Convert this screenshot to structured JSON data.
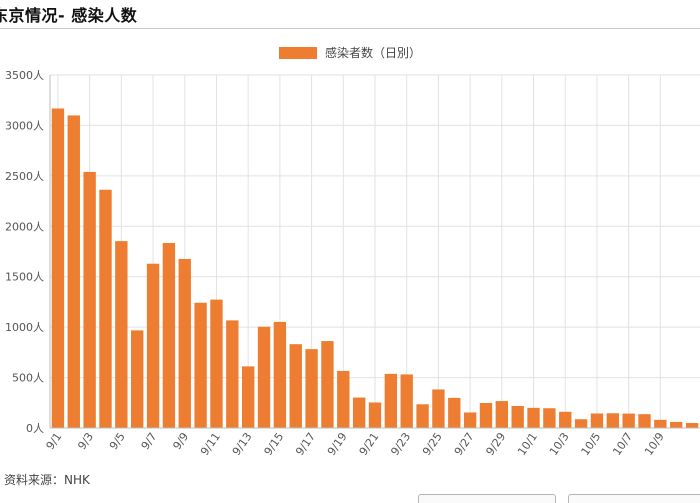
{
  "page": {
    "title": "东京情况- 感染人数"
  },
  "footer": {
    "source": "资料来源：NHK"
  },
  "chart_data": {
    "type": "bar",
    "legend": {
      "label": "感染者数（日別）",
      "position": "top"
    },
    "categories": [
      "9/1",
      "9/2",
      "9/3",
      "9/4",
      "9/5",
      "9/6",
      "9/7",
      "9/8",
      "9/9",
      "9/10",
      "9/11",
      "9/12",
      "9/13",
      "9/14",
      "9/15",
      "9/16",
      "9/17",
      "9/18",
      "9/19",
      "9/20",
      "9/21",
      "9/22",
      "9/23",
      "9/24",
      "9/25",
      "9/26",
      "9/27",
      "9/28",
      "9/29",
      "9/30",
      "10/1",
      "10/2",
      "10/3",
      "10/4",
      "10/5",
      "10/6",
      "10/7",
      "10/8",
      "10/9",
      "10/10",
      "10/11"
    ],
    "tick_labels": [
      "9/1",
      "9/3",
      "9/5",
      "9/7",
      "9/9",
      "9/11",
      "9/13",
      "9/15",
      "9/17",
      "9/19",
      "9/21",
      "9/23",
      "9/25",
      "9/27",
      "9/29",
      "10/1",
      "10/3",
      "10/5",
      "10/7",
      "10/9"
    ],
    "values": [
      3168,
      3099,
      2539,
      2362,
      1853,
      968,
      1629,
      1834,
      1676,
      1242,
      1273,
      1067,
      611,
      1004,
      1052,
      831,
      782,
      862,
      566,
      302,
      253,
      537,
      531,
      235,
      382,
      299,
      154,
      248,
      267,
      218,
      200,
      196,
      161,
      87,
      144,
      146,
      143,
      137,
      81,
      60,
      49
    ],
    "y_ticks": [
      "0人",
      "500人",
      "1000人",
      "1500人",
      "2000人",
      "2500人",
      "3000人",
      "3500人"
    ],
    "ylim": [
      0,
      3500
    ],
    "bar_color": "#ed7d31",
    "grid": true
  }
}
